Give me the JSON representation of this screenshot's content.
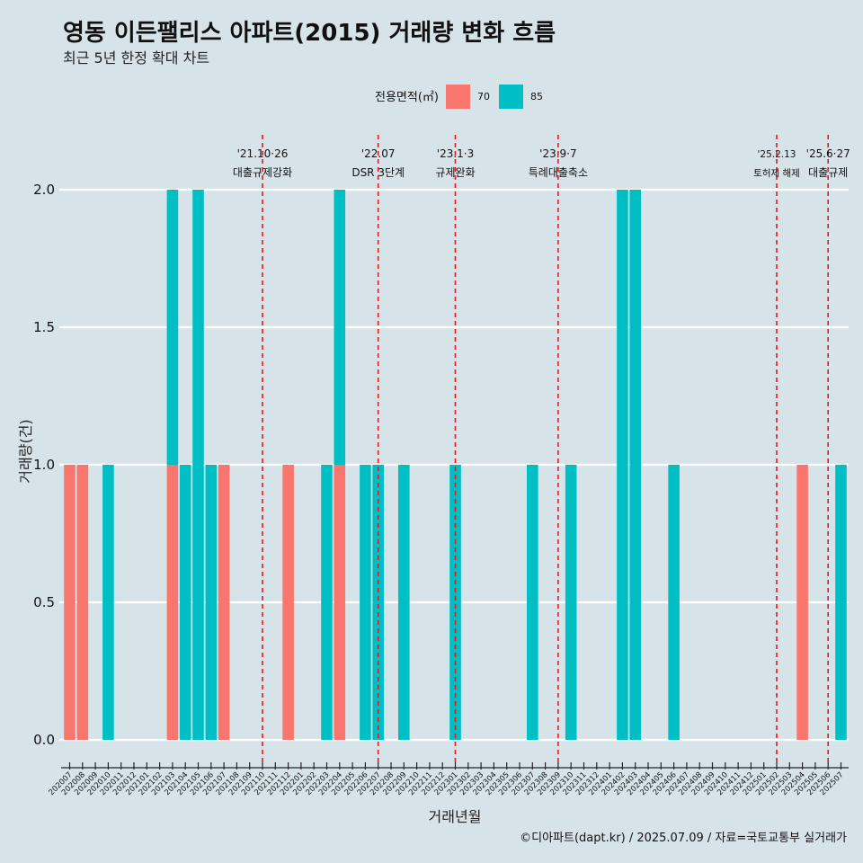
{
  "title": "영동 이든팰리스 아파트(2015) 거래량 변화 흐름",
  "subtitle": "최근 5년 한정 확대 차트",
  "caption": "©디아파트(dapt.kr) / 2025.07.09 / 자료=국토교통부 실거래가",
  "colors": {
    "background": "#d6e4ea",
    "series_70": "#f8766d",
    "series_85": "#00bfc4",
    "vline": "#e41a1c",
    "grid": "#ffffff"
  },
  "chart_data": {
    "type": "bar",
    "xlabel": "거래년월",
    "ylabel": "거래량(건)",
    "ylim": [
      0,
      2.0
    ],
    "yticks": [
      "0.0",
      "0.5",
      "1.0",
      "1.5",
      "2.0"
    ],
    "grid": true,
    "legend": {
      "title": "전용면적(㎡)",
      "position": "top",
      "entries": [
        "70",
        "85"
      ]
    },
    "categories": [
      "202007",
      "202008",
      "202009",
      "202010",
      "202011",
      "202012",
      "202101",
      "202102",
      "202103",
      "202104",
      "202105",
      "202106",
      "202107",
      "202108",
      "202109",
      "202110",
      "202111",
      "202112",
      "202201",
      "202202",
      "202203",
      "202204",
      "202205",
      "202206",
      "202207",
      "202208",
      "202209",
      "202210",
      "202211",
      "202212",
      "202301",
      "202302",
      "202303",
      "202304",
      "202305",
      "202306",
      "202307",
      "202308",
      "202309",
      "202310",
      "202311",
      "202312",
      "202401",
      "202402",
      "202403",
      "202404",
      "202405",
      "202406",
      "202407",
      "202408",
      "202409",
      "202410",
      "202411",
      "202412",
      "202501",
      "202502",
      "202503",
      "202504",
      "202505",
      "202506",
      "202507"
    ],
    "tick_labels": [
      "202007",
      "202008",
      "202009",
      "202010",
      "202011",
      "202012",
      "202101",
      "202102",
      "202103",
      "202104",
      "202105",
      "202106",
      "202107",
      "202108",
      "202109",
      "202110",
      "202111",
      "202112",
      "202201",
      "202202",
      "202203",
      "202204",
      "202205",
      "202206",
      "202207",
      "202208",
      "202209",
      "202210",
      "202211",
      "202212",
      "202301",
      "202302",
      "202303",
      "202304",
      "202305",
      "202306",
      "202307",
      "202308",
      "202309",
      "202310",
      "202311",
      "202312",
      "202401",
      "202402",
      "202403",
      "202404",
      "202405",
      "202406",
      "202407",
      "202408",
      "202409",
      "202410",
      "202411",
      "202412",
      "202501",
      "202502",
      "202503",
      "202504",
      "202505",
      "202506",
      "202507"
    ],
    "bars": [
      {
        "month": "202007",
        "area": "70",
        "value": 1
      },
      {
        "month": "202008",
        "area": "70",
        "value": 1
      },
      {
        "month": "202010",
        "area": "85",
        "value": 1
      },
      {
        "month": "202103",
        "area": "70",
        "value": 1
      },
      {
        "month": "202103",
        "area": "85",
        "value": 1
      },
      {
        "month": "202104",
        "area": "85",
        "value": 1
      },
      {
        "month": "202105",
        "area": "85",
        "value": 2
      },
      {
        "month": "202106",
        "area": "85",
        "value": 1
      },
      {
        "month": "202107",
        "area": "70",
        "value": 1
      },
      {
        "month": "202112",
        "area": "70",
        "value": 1
      },
      {
        "month": "202203",
        "area": "85",
        "value": 1
      },
      {
        "month": "202204",
        "area": "70",
        "value": 1
      },
      {
        "month": "202204",
        "area": "85",
        "value": 1
      },
      {
        "month": "202206",
        "area": "85",
        "value": 1
      },
      {
        "month": "202207",
        "area": "85",
        "value": 1
      },
      {
        "month": "202209",
        "area": "85",
        "value": 1
      },
      {
        "month": "202301",
        "area": "85",
        "value": 1
      },
      {
        "month": "202307",
        "area": "85",
        "value": 1
      },
      {
        "month": "202310",
        "area": "85",
        "value": 1
      },
      {
        "month": "202402",
        "area": "85",
        "value": 2
      },
      {
        "month": "202403",
        "area": "85",
        "value": 2
      },
      {
        "month": "202406",
        "area": "85",
        "value": 1
      },
      {
        "month": "202504",
        "area": "70",
        "value": 1
      },
      {
        "month": "202507",
        "area": "85",
        "value": 1
      }
    ],
    "annotations": [
      {
        "month": "202110",
        "date": "'21.10·26",
        "label": "대출규제강화",
        "size": "normal"
      },
      {
        "month": "202207",
        "date": "'22.07",
        "label": "DSR 3단계",
        "size": "normal"
      },
      {
        "month": "202301",
        "date": "'23.1·3",
        "label": "규제완화",
        "size": "normal"
      },
      {
        "month": "202309",
        "date": "'23.9·7",
        "label": "특례대출축소",
        "size": "normal"
      },
      {
        "month": "202502",
        "date": "'25.2.13",
        "label": "토허제 해제",
        "size": "small"
      },
      {
        "month": "202506",
        "date": "'25.6·27",
        "label": "대출규제",
        "size": "normal"
      }
    ]
  }
}
